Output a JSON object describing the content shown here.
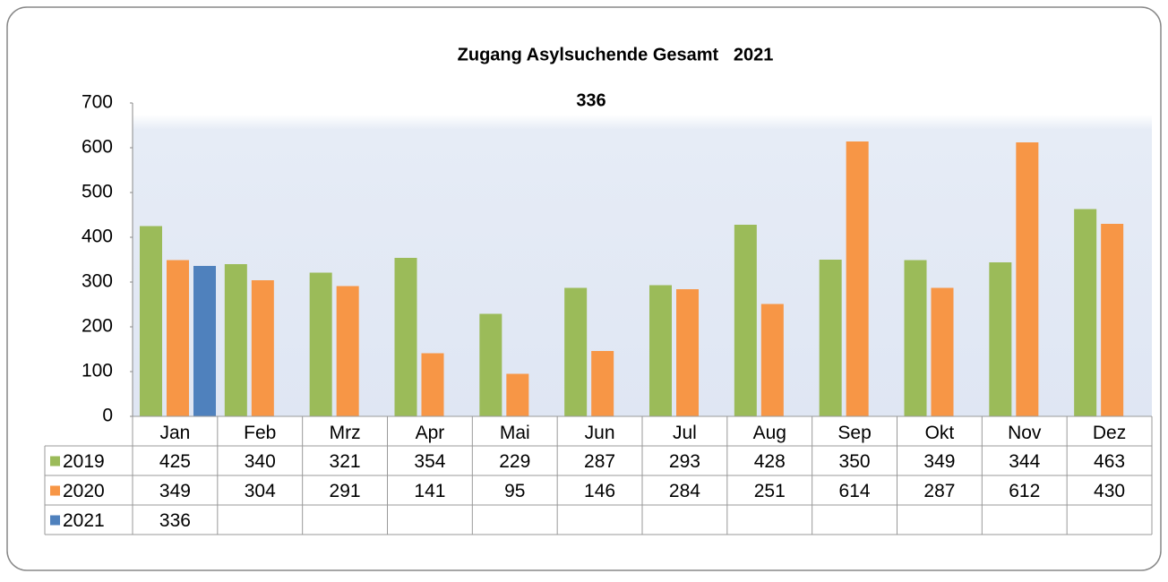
{
  "chart_data": {
    "type": "bar",
    "title": "Zugang Asylsuchende Gesamt   2021",
    "subtitle": "336",
    "categories": [
      "Jan",
      "Feb",
      "Mrz",
      "Apr",
      "Mai",
      "Jun",
      "Jul",
      "Aug",
      "Sep",
      "Okt",
      "Nov",
      "Dez"
    ],
    "series": [
      {
        "name": "2019",
        "color": "#9bbb59",
        "values": [
          425,
          340,
          321,
          354,
          229,
          287,
          293,
          428,
          350,
          349,
          344,
          463
        ]
      },
      {
        "name": "2020",
        "color": "#f79646",
        "values": [
          349,
          304,
          291,
          141,
          95,
          146,
          284,
          251,
          614,
          287,
          612,
          430
        ]
      },
      {
        "name": "2021",
        "color": "#4f81bd",
        "values": [
          336,
          null,
          null,
          null,
          null,
          null,
          null,
          null,
          null,
          null,
          null,
          null
        ]
      }
    ],
    "ylim": [
      0,
      700
    ],
    "yticks": [
      0,
      100,
      200,
      300,
      400,
      500,
      600,
      700
    ],
    "grid": false,
    "data_table": true
  }
}
